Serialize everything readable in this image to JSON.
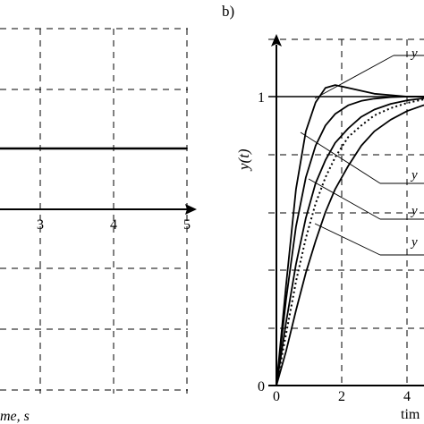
{
  "chart_data": [
    {
      "type": "line",
      "panel": "left (cropped)",
      "xlabel_visible": "me, s",
      "xlim": [
        2.2,
        5.2
      ],
      "ylim": [
        -1.35,
        1.45
      ],
      "x_ticks": [
        "3",
        "4",
        "5"
      ],
      "grid": true,
      "series": [
        {
          "x": [
            2.2,
            5.0
          ],
          "y": [
            1,
            1
          ]
        }
      ]
    },
    {
      "type": "line",
      "panel_label": "b)",
      "ylabel": "y(t)",
      "xlabel_visible": "tim",
      "x_ticks": [
        "0",
        "2",
        "4"
      ],
      "y_ticks": [
        "0",
        "1"
      ],
      "xlim": [
        0,
        5
      ],
      "ylim": [
        0,
        1.25
      ],
      "grid": true,
      "legend_labels": [
        "y",
        "y",
        "y",
        "y"
      ],
      "series": [
        {
          "style": "solid",
          "x": [
            0,
            0.3,
            0.6,
            0.9,
            1.2,
            1.5,
            1.8,
            2.2,
            2.6,
            3.0,
            3.5,
            4.0,
            4.5,
            5.0
          ],
          "y": [
            0,
            0.35,
            0.68,
            0.88,
            0.98,
            1.03,
            1.04,
            1.03,
            1.02,
            1.01,
            1.005,
            1.0,
            1.0,
            1.0
          ]
        },
        {
          "style": "solid",
          "x": [
            0,
            0.3,
            0.6,
            0.9,
            1.2,
            1.5,
            1.8,
            2.2,
            2.6,
            3.0,
            3.5,
            4.0,
            4.5,
            5.0
          ],
          "y": [
            0,
            0.3,
            0.55,
            0.72,
            0.83,
            0.9,
            0.94,
            0.97,
            0.985,
            0.993,
            0.998,
            1.0,
            1.0,
            1.0
          ]
        },
        {
          "style": "solid",
          "x": [
            0,
            0.3,
            0.6,
            0.9,
            1.2,
            1.5,
            1.8,
            2.2,
            2.6,
            3.0,
            3.5,
            4.0,
            4.5,
            5.0
          ],
          "y": [
            0,
            0.22,
            0.42,
            0.58,
            0.7,
            0.78,
            0.84,
            0.89,
            0.93,
            0.955,
            0.975,
            0.987,
            0.994,
            0.998
          ]
        },
        {
          "style": "dotted",
          "x": [
            0,
            0.3,
            0.6,
            0.9,
            1.2,
            1.5,
            1.8,
            2.2,
            2.6,
            3.0,
            3.5,
            4.0,
            4.5,
            5.0
          ],
          "y": [
            0,
            0.18,
            0.36,
            0.51,
            0.63,
            0.72,
            0.79,
            0.86,
            0.9,
            0.935,
            0.96,
            0.978,
            0.99,
            0.996
          ]
        },
        {
          "style": "solid",
          "x": [
            0,
            0.3,
            0.6,
            0.9,
            1.2,
            1.5,
            1.8,
            2.2,
            2.6,
            3.0,
            3.5,
            4.0,
            4.5,
            5.0
          ],
          "y": [
            0,
            0.12,
            0.26,
            0.39,
            0.5,
            0.6,
            0.68,
            0.76,
            0.83,
            0.88,
            0.92,
            0.95,
            0.97,
            0.985
          ]
        }
      ]
    }
  ]
}
